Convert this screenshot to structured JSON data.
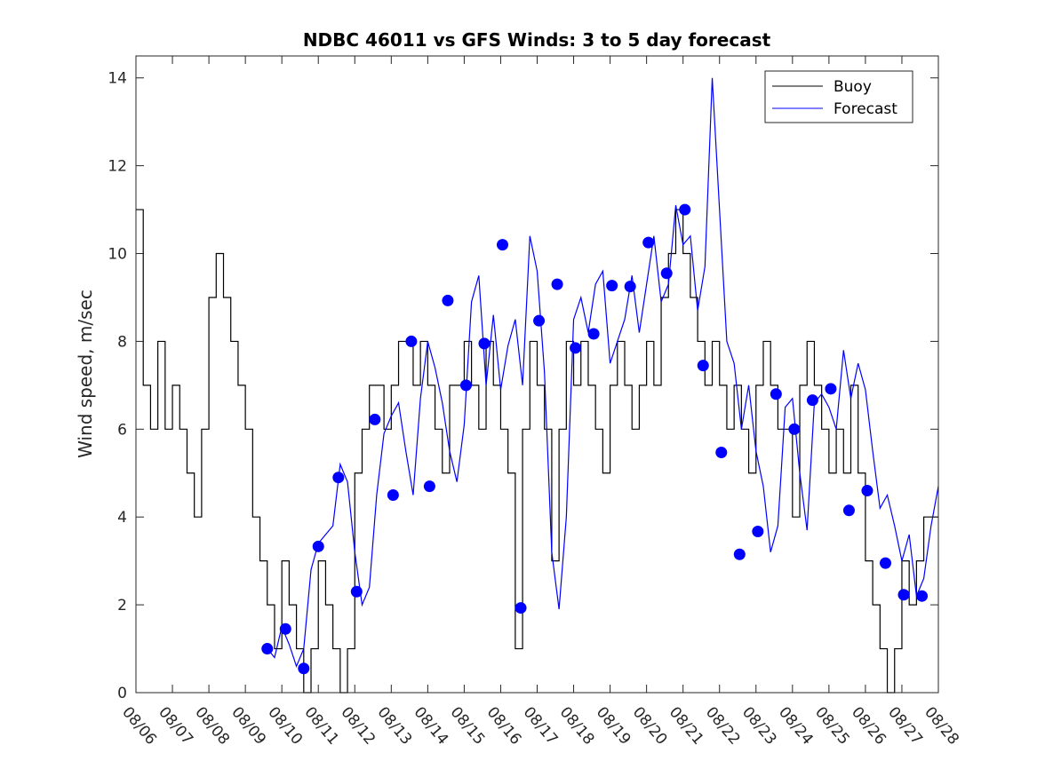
{
  "chart_data": {
    "type": "line",
    "title": "NDBC 46011 vs GFS Winds: 3 to 5 day forecast",
    "xlabel": "",
    "ylabel": "Wind speed, m/sec",
    "xlim": [
      0,
      22
    ],
    "ylim": [
      0,
      14.5
    ],
    "yticks": [
      0,
      2,
      4,
      6,
      8,
      10,
      12,
      14
    ],
    "xtick_labels": [
      "08/06",
      "08/07",
      "08/08",
      "08/09",
      "08/10",
      "08/11",
      "08/12",
      "08/13",
      "08/14",
      "08/15",
      "08/16",
      "08/17",
      "08/18",
      "08/19",
      "08/20",
      "08/21",
      "08/22",
      "08/23",
      "08/24",
      "08/25",
      "08/26",
      "08/27",
      "08/28"
    ],
    "legend": {
      "position": "top-right",
      "entries": [
        {
          "label": "Buoy",
          "color": "#000000"
        },
        {
          "label": "Forecast",
          "color": "#0000ff"
        }
      ]
    },
    "series": [
      {
        "name": "Buoy",
        "color": "#000000",
        "style": "step",
        "x": [
          0,
          0.2,
          0.4,
          0.6,
          0.8,
          1.0,
          1.2,
          1.4,
          1.6,
          1.8,
          2.0,
          2.2,
          2.4,
          2.6,
          2.8,
          3.0,
          3.2,
          3.4,
          3.6,
          3.8,
          4.0,
          4.2,
          4.4,
          4.6,
          4.8,
          5.0,
          5.2,
          5.4,
          5.6,
          5.8,
          6.0,
          6.2,
          6.4,
          6.6,
          6.8,
          7.0,
          7.2,
          7.4,
          7.6,
          7.8,
          8.0,
          8.2,
          8.4,
          8.6,
          8.8,
          9.0,
          9.2,
          9.4,
          9.6,
          9.8,
          10.0,
          10.2,
          10.4,
          10.6,
          10.8,
          11.0,
          11.2,
          11.4,
          11.6,
          11.8,
          12.0,
          12.2,
          12.4,
          12.6,
          12.8,
          13.0,
          13.2,
          13.4,
          13.6,
          13.8,
          14.0,
          14.2,
          14.4,
          14.6,
          14.8,
          15.0,
          15.2,
          15.4,
          15.6,
          15.8,
          16.0,
          16.2,
          16.4,
          16.6,
          16.8,
          17.0,
          17.2,
          17.4,
          17.6,
          17.8,
          18.0,
          18.2,
          18.4,
          18.6,
          18.8,
          19.0,
          19.2,
          19.4,
          19.6,
          19.8,
          20.0,
          20.2,
          20.4,
          20.6,
          20.8,
          21.0,
          21.2,
          21.4,
          21.6,
          21.8,
          22.0
        ],
        "values": [
          11,
          7,
          6,
          8,
          6,
          7,
          6,
          5,
          4,
          6,
          9,
          10,
          9,
          8,
          7,
          6,
          4,
          3,
          2,
          1,
          3,
          2,
          1,
          0,
          1,
          3,
          2,
          1,
          0,
          1,
          5,
          6,
          7,
          7,
          6,
          7,
          8,
          8,
          7,
          8,
          7,
          6,
          5,
          7,
          7,
          8,
          7,
          6,
          8,
          7,
          6,
          5,
          1,
          6,
          8,
          7,
          6,
          3,
          6,
          8,
          7,
          8,
          7,
          6,
          5,
          7,
          8,
          7,
          6,
          7,
          8,
          7,
          9,
          10,
          11,
          10,
          9,
          8,
          7,
          8,
          7,
          6,
          7,
          6,
          5,
          7,
          8,
          7,
          6,
          6,
          4,
          7,
          8,
          7,
          6,
          5,
          6,
          5,
          7,
          5,
          3,
          2,
          1,
          0,
          1,
          3,
          2,
          3,
          4,
          4,
          4
        ]
      },
      {
        "name": "Forecast",
        "color": "#0000ff",
        "x": [
          3.6,
          3.8,
          4.0,
          4.2,
          4.4,
          4.6,
          4.8,
          5.0,
          5.2,
          5.4,
          5.6,
          5.8,
          6.0,
          6.2,
          6.4,
          6.6,
          6.8,
          7.0,
          7.2,
          7.4,
          7.6,
          7.8,
          8.0,
          8.2,
          8.4,
          8.6,
          8.8,
          9.0,
          9.2,
          9.4,
          9.6,
          9.8,
          10.0,
          10.2,
          10.4,
          10.6,
          10.8,
          11.0,
          11.2,
          11.4,
          11.6,
          11.8,
          12.0,
          12.2,
          12.4,
          12.6,
          12.8,
          13.0,
          13.2,
          13.4,
          13.6,
          13.8,
          14.0,
          14.2,
          14.4,
          14.6,
          14.8,
          15.0,
          15.2,
          15.4,
          15.6,
          15.8,
          16.0,
          16.2,
          16.4,
          16.6,
          16.8,
          17.0,
          17.2,
          17.4,
          17.6,
          17.8,
          18.0,
          18.2,
          18.4,
          18.6,
          18.8,
          19.0,
          19.2,
          19.4,
          19.6,
          19.8,
          20.0,
          20.2,
          20.4,
          20.6,
          20.8,
          21.0,
          21.2,
          21.4,
          21.6,
          21.8,
          22.0
        ],
        "values": [
          1.0,
          0.8,
          1.5,
          1.1,
          0.6,
          1.0,
          2.8,
          3.4,
          3.6,
          3.8,
          5.2,
          4.8,
          3.2,
          2.0,
          2.4,
          4.5,
          5.9,
          6.3,
          6.6,
          5.5,
          4.5,
          6.7,
          8.0,
          7.4,
          6.6,
          5.5,
          4.8,
          6.1,
          8.9,
          9.5,
          7.0,
          8.6,
          6.9,
          7.9,
          8.5,
          7.0,
          10.4,
          9.6,
          7.3,
          3.2,
          1.9,
          4.0,
          8.5,
          9.0,
          8.2,
          9.3,
          9.6,
          7.5,
          8.0,
          8.5,
          9.5,
          8.2,
          9.3,
          10.4,
          8.9,
          9.3,
          11.1,
          10.2,
          10.4,
          8.7,
          9.7,
          14.0,
          11.0,
          8.0,
          7.5,
          6.0,
          7.0,
          5.5,
          4.7,
          3.2,
          3.8,
          6.5,
          6.7,
          5.0,
          3.7,
          6.6,
          6.8,
          6.5,
          6.0,
          7.8,
          6.7,
          7.5,
          6.9,
          5.5,
          4.2,
          4.5,
          3.8,
          3.0,
          3.6,
          2.2,
          2.6,
          3.8,
          4.7
        ]
      },
      {
        "name": "Forecast markers",
        "color": "#0000ff",
        "style": "marker",
        "x": [
          3.6,
          4.1,
          4.6,
          5.0,
          5.55,
          6.05,
          6.55,
          7.05,
          7.55,
          8.05,
          8.55,
          9.05,
          9.55,
          10.05,
          10.55,
          11.05,
          11.55,
          12.05,
          12.55,
          13.05,
          13.55,
          14.05,
          14.55,
          15.05,
          15.55,
          16.05,
          16.55,
          17.05,
          17.55,
          18.05,
          18.55,
          19.05,
          19.55,
          20.05,
          20.55,
          21.05,
          21.55
        ],
        "values": [
          1.0,
          1.45,
          0.55,
          3.33,
          4.9,
          2.3,
          6.22,
          4.5,
          8.0,
          4.7,
          8.93,
          7.0,
          7.95,
          10.2,
          1.93,
          8.47,
          9.3,
          7.85,
          8.17,
          9.27,
          9.25,
          10.25,
          9.55,
          11.0,
          7.45,
          5.47,
          3.15,
          3.67,
          6.8,
          6.0,
          6.66,
          6.92,
          4.15,
          4.6,
          2.95,
          2.23,
          2.2
        ]
      }
    ]
  }
}
